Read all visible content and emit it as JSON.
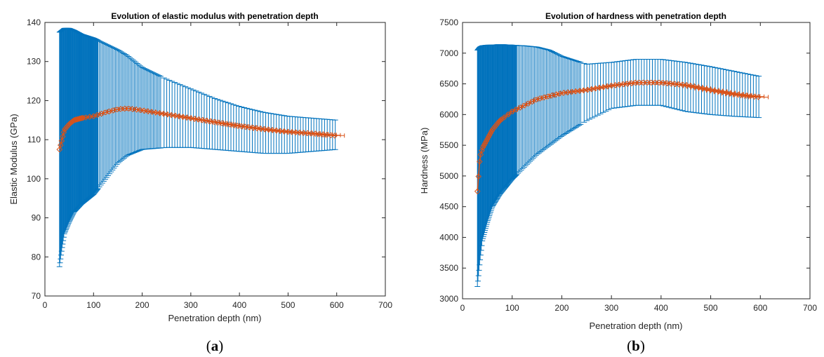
{
  "chart_data": [
    {
      "type": "line",
      "title": "Evolution of elastic modulus with penetration depth",
      "xlabel": "Penetration depth (nm)",
      "ylabel": "Elastic Modulus (GPa)",
      "caption_letter": "a",
      "xlim": [
        0,
        700
      ],
      "ylim": [
        70,
        140
      ],
      "xticks": [
        0,
        100,
        200,
        300,
        400,
        500,
        600,
        700
      ],
      "yticks": [
        70,
        80,
        90,
        100,
        110,
        120,
        130,
        140
      ],
      "grid": false,
      "series": [
        {
          "color": "#D95319",
          "marker": "diamond",
          "x": [
            30,
            35,
            40,
            50,
            60,
            75,
            100,
            125,
            150,
            170,
            200,
            250,
            300,
            350,
            400,
            450,
            500,
            550,
            600
          ],
          "values": [
            107.5,
            110,
            112.5,
            114,
            115,
            115.5,
            116,
            117,
            117.8,
            118,
            117.5,
            116.5,
            115.5,
            114.5,
            113.5,
            112.7,
            112,
            111.6,
            111
          ]
        }
      ],
      "error_bars": {
        "color": "#0072BD",
        "upper": [
          137.5,
          138,
          138.5,
          138.5,
          138,
          137,
          136,
          134.5,
          133,
          131.5,
          128.5,
          125.5,
          123,
          120.5,
          118.5,
          117,
          116,
          115.5,
          115
        ],
        "lower": [
          77.5,
          82,
          86,
          89,
          91.5,
          93.5,
          96,
          100,
          104,
          106,
          107.5,
          108,
          108,
          107.5,
          107,
          106.5,
          106.5,
          107,
          107.5
        ],
        "x_error_max": 20
      }
    },
    {
      "type": "line",
      "title": "Evolution of hardness with penetration depth",
      "xlabel": "Penetration depth (nm)",
      "ylabel": "Hardness (MPa)",
      "caption_letter": "b",
      "xlim": [
        0,
        700
      ],
      "ylim": [
        3000,
        7500
      ],
      "xticks": [
        0,
        100,
        200,
        300,
        400,
        500,
        600,
        700
      ],
      "yticks": [
        3000,
        3500,
        4000,
        4500,
        5000,
        5500,
        6000,
        6500,
        7000,
        7500
      ],
      "grid": false,
      "series": [
        {
          "color": "#D95319",
          "marker": "diamond",
          "x": [
            30,
            35,
            40,
            50,
            60,
            75,
            100,
            125,
            150,
            175,
            200,
            250,
            300,
            350,
            400,
            450,
            500,
            550,
            600
          ],
          "values": [
            4750,
            5300,
            5450,
            5600,
            5750,
            5900,
            6050,
            6150,
            6250,
            6300,
            6350,
            6400,
            6470,
            6520,
            6520,
            6480,
            6400,
            6330,
            6280
          ]
        }
      ],
      "error_bars": {
        "color": "#0072BD",
        "upper": [
          7050,
          7100,
          7120,
          7130,
          7130,
          7140,
          7130,
          7120,
          7100,
          7050,
          6950,
          6820,
          6850,
          6900,
          6900,
          6850,
          6780,
          6700,
          6620
        ],
        "lower": [
          3200,
          3600,
          3950,
          4250,
          4500,
          4700,
          4950,
          5150,
          5350,
          5500,
          5650,
          5900,
          6100,
          6150,
          6150,
          6050,
          6000,
          5970,
          5950
        ],
        "x_error_max": 20
      }
    }
  ]
}
